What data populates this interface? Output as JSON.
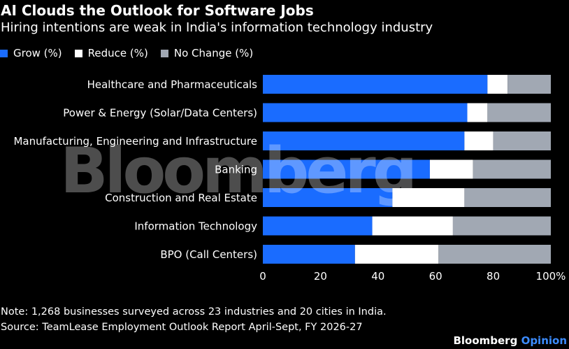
{
  "header": {
    "title": "AI Clouds the Outlook for Software Jobs",
    "subtitle": "Hiring intentions are weak in India's information technology industry"
  },
  "watermark": "Bloomberg",
  "chart_data": {
    "type": "bar",
    "orientation": "horizontal",
    "stacked": true,
    "title": "AI Clouds the Outlook for Software Jobs",
    "subtitle": "Hiring intentions are weak in India's information technology industry",
    "categories": [
      "Healthcare and Pharmaceuticals",
      "Power & Energy (Solar/Data Centers)",
      "Manufacturing, Engineering and Infrastructure",
      "Banking",
      "Construction and Real Estate",
      "Information Technology",
      "BPO (Call Centers)"
    ],
    "series": [
      {
        "name": "Grow (%)",
        "color": "#1a6cff",
        "values": [
          78,
          71,
          70,
          58,
          45,
          38,
          32
        ]
      },
      {
        "name": "Reduce (%)",
        "color": "#ffffff",
        "values": [
          7,
          7,
          10,
          15,
          25,
          28,
          29
        ]
      },
      {
        "name": "No Change (%)",
        "color": "#a1a8b3",
        "values": [
          15,
          22,
          20,
          27,
          30,
          34,
          39
        ]
      }
    ],
    "xlim": [
      0,
      100
    ],
    "xticks": [
      "0",
      "20",
      "40",
      "60",
      "80",
      "100%"
    ],
    "xtick_values": [
      0,
      20,
      40,
      60,
      80,
      100
    ],
    "legend": "top-left",
    "grid": false
  },
  "footer": {
    "note": "Note: 1,268 businesses surveyed across 23 industries and 20 cities in India.",
    "source": "Source: TeamLease Employment Outlook Report April-Sept, FY 2026-27",
    "brand_main": "Bloomberg",
    "brand_accent": "Opinion"
  }
}
